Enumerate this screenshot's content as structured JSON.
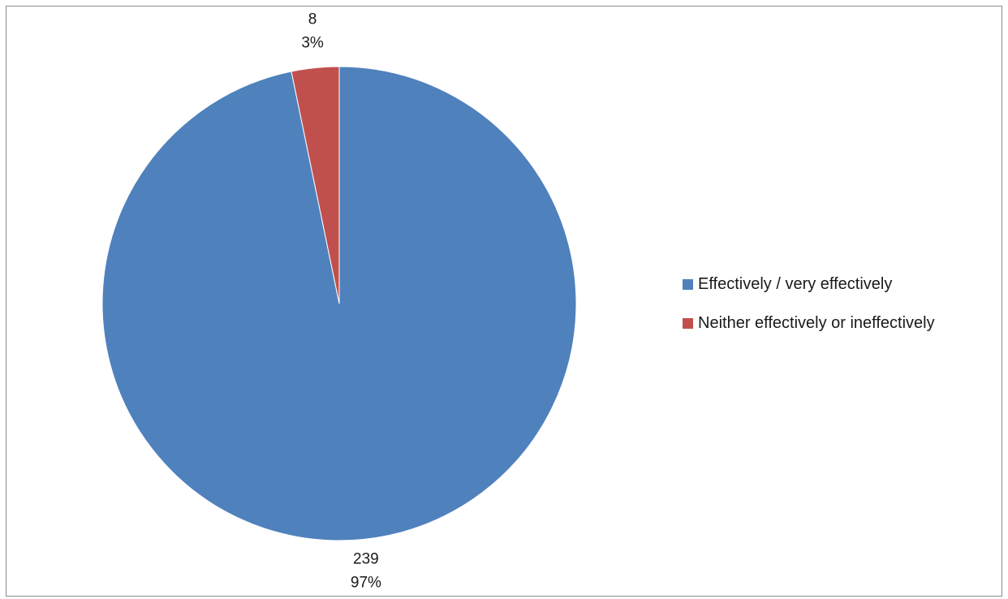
{
  "chart_data": {
    "type": "pie",
    "title": "",
    "series": [
      {
        "name": "Effectively / very effectively",
        "value": 239,
        "percent_label": "97%",
        "value_label": "239",
        "color": "#4f81bd"
      },
      {
        "name": "Neither effectively or ineffectively",
        "value": 8,
        "percent_label": "3%",
        "value_label": "8",
        "color": "#c0504d"
      }
    ],
    "start_angle_deg": 0,
    "direction": "clockwise",
    "legend_position": "right"
  }
}
